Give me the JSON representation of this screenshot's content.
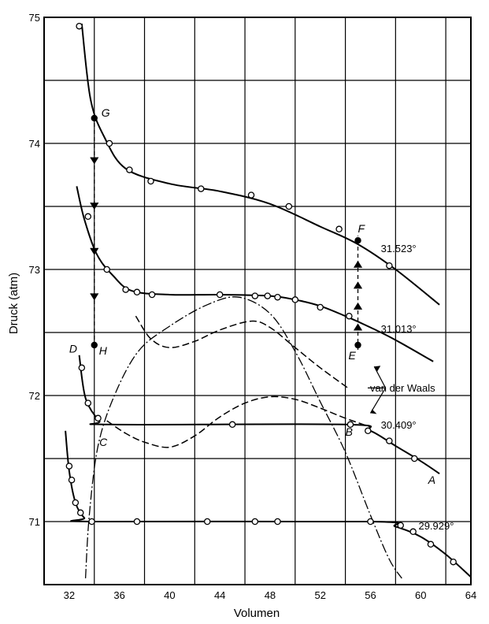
{
  "chart_data": {
    "type": "line",
    "title": "",
    "xlabel": "Volumen",
    "ylabel": "Druck (atm)",
    "xlim": [
      30,
      64
    ],
    "ylim": [
      70.5,
      75
    ],
    "xticks": [
      32,
      36,
      40,
      44,
      48,
      52,
      56,
      60,
      64
    ],
    "yticks": [
      71,
      72,
      73,
      74,
      75
    ],
    "grid": true,
    "series": [
      {
        "name": "31.523°",
        "curve": [
          [
            33,
            74.95
          ],
          [
            33.7,
            74.35
          ],
          [
            34.8,
            74.05
          ],
          [
            36.5,
            73.8
          ],
          [
            40,
            73.68
          ],
          [
            44,
            73.62
          ],
          [
            48,
            73.52
          ],
          [
            52,
            73.34
          ],
          [
            55,
            73.2
          ],
          [
            58,
            73.0
          ],
          [
            61.5,
            72.72
          ]
        ],
        "points": [
          [
            32.8,
            74.93
          ],
          [
            35.2,
            74.0
          ],
          [
            36.8,
            73.79
          ],
          [
            38.5,
            73.7
          ],
          [
            42.5,
            73.64
          ],
          [
            46.5,
            73.59
          ],
          [
            49.5,
            73.5
          ],
          [
            53.5,
            73.32
          ],
          [
            57.5,
            73.03
          ]
        ]
      },
      {
        "name": "31.013°",
        "curve": [
          [
            32.6,
            73.66
          ],
          [
            33.2,
            73.4
          ],
          [
            34.2,
            73.12
          ],
          [
            35.5,
            72.95
          ],
          [
            37,
            72.83
          ],
          [
            40,
            72.8
          ],
          [
            44,
            72.8
          ],
          [
            48,
            72.79
          ],
          [
            50,
            72.76
          ],
          [
            52,
            72.71
          ],
          [
            54,
            72.63
          ],
          [
            56,
            72.54
          ],
          [
            58,
            72.44
          ],
          [
            61,
            72.27
          ]
        ],
        "points": [
          [
            33.5,
            73.42
          ],
          [
            35,
            73.0
          ],
          [
            36.5,
            72.84
          ],
          [
            37.4,
            72.82
          ],
          [
            38.6,
            72.8
          ],
          [
            44,
            72.8
          ],
          [
            46.8,
            72.79
          ],
          [
            47.8,
            72.79
          ],
          [
            48.6,
            72.78
          ],
          [
            50,
            72.76
          ],
          [
            52,
            72.7
          ],
          [
            54.3,
            72.63
          ]
        ]
      },
      {
        "name": "30.409°",
        "curve": [
          [
            32.8,
            72.32
          ],
          [
            33.3,
            71.98
          ],
          [
            34.4,
            71.8
          ],
          [
            35.3,
            71.77
          ],
          [
            54,
            71.77
          ],
          [
            56,
            71.72
          ],
          [
            58,
            71.6
          ],
          [
            60,
            71.48
          ],
          [
            61.5,
            71.38
          ]
        ],
        "points": [
          [
            33,
            72.22
          ],
          [
            33.5,
            71.94
          ],
          [
            34.3,
            71.82
          ],
          [
            45,
            71.77
          ],
          [
            54.4,
            71.77
          ],
          [
            55.8,
            71.72
          ],
          [
            57.5,
            71.64
          ],
          [
            59.5,
            71.5
          ]
        ]
      },
      {
        "name": "29.929°",
        "curve": [
          [
            31.7,
            71.72
          ],
          [
            32,
            71.4
          ],
          [
            32.5,
            71.15
          ],
          [
            33.2,
            71.03
          ],
          [
            34,
            71.0
          ],
          [
            56,
            71.0
          ],
          [
            58,
            70.96
          ],
          [
            60,
            70.88
          ],
          [
            62,
            70.74
          ],
          [
            64,
            70.56
          ]
        ],
        "points": [
          [
            32,
            71.44
          ],
          [
            32.2,
            71.33
          ],
          [
            32.5,
            71.15
          ],
          [
            32.9,
            71.07
          ],
          [
            33.8,
            71.0
          ],
          [
            37.4,
            71.0
          ],
          [
            43,
            71.0
          ],
          [
            46.8,
            71.0
          ],
          [
            48.6,
            71.0
          ],
          [
            56,
            71.0
          ],
          [
            58.4,
            70.97
          ],
          [
            59.4,
            70.92
          ],
          [
            60.8,
            70.82
          ],
          [
            62.6,
            70.68
          ]
        ]
      }
    ],
    "van_der_waals_curves": [
      [
        [
          37.3,
          72.63
        ],
        [
          38.5,
          72.45
        ],
        [
          40,
          72.38
        ],
        [
          42,
          72.43
        ],
        [
          44,
          72.52
        ],
        [
          46.5,
          72.59
        ],
        [
          48,
          72.54
        ],
        [
          50,
          72.38
        ],
        [
          52,
          72.22
        ],
        [
          54.2,
          72.06
        ]
      ],
      [
        [
          35,
          71.8
        ],
        [
          36.5,
          71.7
        ],
        [
          38,
          71.63
        ],
        [
          40,
          71.59
        ],
        [
          42,
          71.68
        ],
        [
          44,
          71.83
        ],
        [
          46,
          71.94
        ],
        [
          48,
          71.99
        ],
        [
          50,
          71.97
        ],
        [
          52,
          71.9
        ],
        [
          54,
          71.82
        ],
        [
          56,
          71.75
        ]
      ]
    ],
    "dash_dot_curve": [
      [
        33.3,
        70.55
      ],
      [
        33.6,
        71.05
      ],
      [
        34.3,
        71.6
      ],
      [
        35.6,
        72.0
      ],
      [
        37.5,
        72.35
      ],
      [
        40,
        72.55
      ],
      [
        43,
        72.72
      ],
      [
        45.5,
        72.78
      ],
      [
        48,
        72.65
      ],
      [
        50,
        72.35
      ],
      [
        52,
        71.95
      ],
      [
        54,
        71.55
      ],
      [
        56,
        71.05
      ],
      [
        57.5,
        70.7
      ],
      [
        58.5,
        70.55
      ]
    ],
    "state_points": [
      {
        "label": "G",
        "x": 34,
        "y": 74.2
      },
      {
        "label": "H",
        "x": 34,
        "y": 72.4
      },
      {
        "label": "F",
        "x": 55,
        "y": 73.23
      },
      {
        "label": "E",
        "x": 55,
        "y": 72.4
      }
    ],
    "curve_letters": [
      {
        "label": "D",
        "x": 32,
        "y": 72.34
      },
      {
        "label": "C",
        "x": 34.4,
        "y": 71.6
      },
      {
        "label": "B",
        "x": 54,
        "y": 71.68
      },
      {
        "label": "A",
        "x": 60.6,
        "y": 71.3
      }
    ],
    "annotations": [
      "van der Waals"
    ]
  }
}
